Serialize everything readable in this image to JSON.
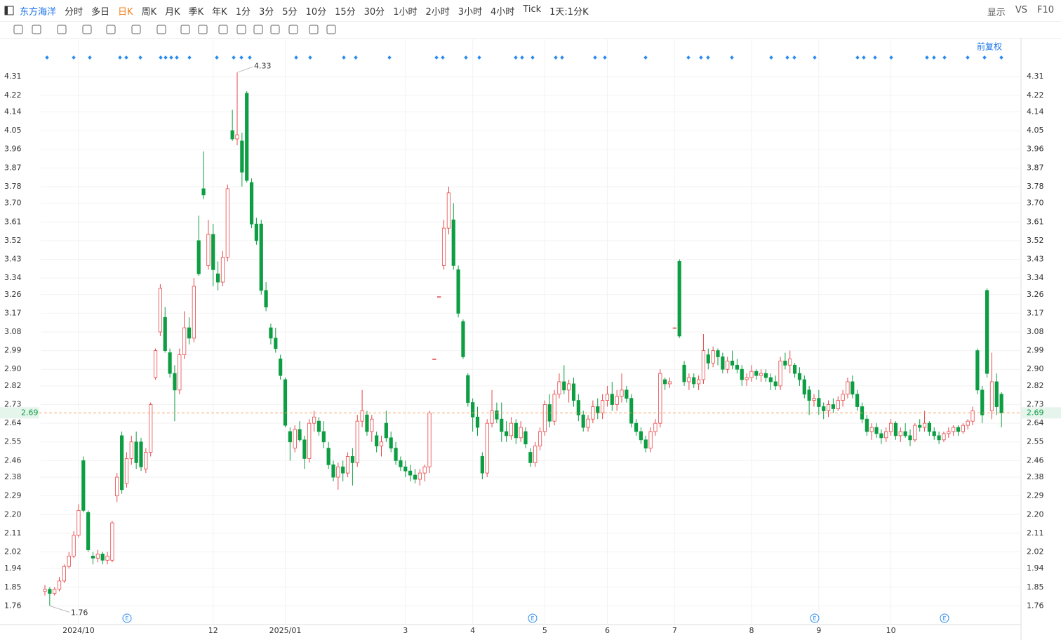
{
  "toolbar": {
    "stock": "东方海洋",
    "periods": [
      "分时",
      "多日",
      "日K",
      "周K",
      "月K",
      "季K",
      "年K",
      "1分",
      "3分",
      "5分",
      "10分",
      "15分",
      "30分",
      "1小时",
      "2小时",
      "3小时",
      "4小时",
      "Tick"
    ],
    "active_index": 2,
    "interval": "1天:1分K",
    "display": "显示",
    "vs": "VS",
    "f10": "F10",
    "adjust": "前复权",
    "event_label": "E"
  },
  "chart_data": {
    "type": "candlestick",
    "title": "东方海洋",
    "up_color": "#e8474a",
    "down_color": "#0d9e43",
    "ylim": [
      1.67,
      4.49
    ],
    "yticks": [
      1.76,
      1.85,
      1.94,
      2.02,
      2.11,
      {
        "value": 2.2,
        "label": "2.20"
      },
      2.29,
      2.38,
      2.46,
      2.55,
      2.64,
      2.73,
      2.82,
      {
        "value": 2.9,
        "label": "2.90"
      },
      2.99,
      3.08,
      3.17,
      3.26,
      3.34,
      3.43,
      3.52,
      3.61,
      {
        "value": 3.7,
        "label": "3.70"
      },
      3.78,
      3.87,
      3.96,
      4.05,
      4.14,
      4.22,
      4.31
    ],
    "grid": true,
    "last_price": 2.69,
    "last_price_color": "#f5a26a",
    "high_label": 4.33,
    "low_label": 1.76,
    "categories": [
      null,
      null,
      null,
      null,
      null,
      null,
      null,
      "2024/10",
      null,
      null,
      null,
      null,
      null,
      null,
      null,
      null,
      null,
      null,
      null,
      null,
      null,
      null,
      null,
      null,
      null,
      null,
      null,
      null,
      null,
      null,
      null,
      null,
      null,
      null,
      null,
      "12",
      null,
      null,
      null,
      null,
      null,
      null,
      null,
      null,
      null,
      null,
      null,
      null,
      null,
      null,
      "2025/01",
      null,
      null,
      null,
      null,
      null,
      null,
      null,
      null,
      null,
      null,
      null,
      null,
      null,
      null,
      null,
      null,
      null,
      null,
      null,
      null,
      null,
      null,
      null,
      null,
      "3",
      null,
      null,
      null,
      null,
      null,
      null,
      null,
      null,
      null,
      null,
      null,
      null,
      null,
      "4",
      null,
      null,
      null,
      null,
      null,
      null,
      null,
      null,
      null,
      null,
      null,
      null,
      null,
      null,
      "5",
      null,
      null,
      null,
      null,
      null,
      null,
      null,
      null,
      null,
      null,
      null,
      null,
      "6",
      null,
      null,
      null,
      null,
      null,
      null,
      null,
      null,
      null,
      null,
      null,
      null,
      null,
      "7",
      null,
      null,
      null,
      null,
      null,
      null,
      null,
      null,
      null,
      null,
      null,
      null,
      null,
      null,
      null,
      "8",
      null,
      null,
      null,
      null,
      null,
      null,
      null,
      null,
      null,
      null,
      null,
      null,
      null,
      "9",
      null,
      null,
      null,
      null,
      null,
      null,
      null,
      null,
      null,
      null,
      null,
      null,
      null,
      null,
      "10",
      null,
      null,
      null,
      null,
      null,
      null,
      null,
      null,
      null,
      null,
      null,
      null,
      null,
      null,
      null,
      null,
      null,
      null,
      null,
      null,
      null,
      null,
      null
    ],
    "ohlc": [
      [
        1.83,
        1.86,
        1.81,
        1.84
      ],
      [
        1.84,
        1.85,
        1.76,
        1.82
      ],
      [
        1.82,
        1.85,
        1.81,
        1.84
      ],
      [
        1.84,
        1.9,
        1.83,
        1.88
      ],
      [
        1.88,
        1.96,
        1.87,
        1.95
      ],
      [
        1.95,
        2.02,
        1.94,
        2.0
      ],
      [
        2.0,
        2.12,
        1.99,
        2.1
      ],
      [
        2.1,
        2.25,
        2.09,
        2.22
      ],
      [
        2.46,
        2.48,
        2.21,
        2.22
      ],
      [
        2.21,
        2.22,
        2.02,
        2.03
      ],
      [
        2.0,
        2.02,
        1.96,
        1.99
      ],
      [
        1.99,
        2.03,
        1.97,
        2.01
      ],
      [
        2.01,
        2.02,
        1.96,
        1.98
      ],
      [
        1.98,
        2.02,
        1.96,
        2.0
      ],
      [
        1.98,
        2.17,
        1.97,
        2.16
      ],
      [
        2.29,
        2.4,
        2.26,
        2.38
      ],
      [
        2.58,
        2.6,
        2.3,
        2.32
      ],
      [
        2.35,
        2.5,
        2.33,
        2.47
      ],
      [
        2.47,
        2.58,
        2.44,
        2.55
      ],
      [
        2.55,
        2.6,
        2.42,
        2.45
      ],
      [
        2.55,
        2.57,
        2.41,
        2.43
      ],
      [
        2.42,
        2.52,
        2.4,
        2.5
      ],
      [
        2.5,
        2.74,
        2.48,
        2.73
      ],
      [
        2.86,
        3.0,
        2.85,
        2.99
      ],
      [
        3.08,
        3.31,
        3.06,
        3.29
      ],
      [
        3.15,
        3.2,
        2.98,
        2.99
      ],
      [
        2.98,
        3.0,
        2.86,
        2.88
      ],
      [
        2.88,
        2.92,
        2.65,
        2.8
      ],
      [
        2.8,
        3.0,
        2.78,
        2.97
      ],
      [
        2.97,
        3.18,
        2.95,
        3.1
      ],
      [
        3.1,
        3.15,
        3.02,
        3.05
      ],
      [
        3.05,
        3.34,
        3.03,
        3.3
      ],
      [
        3.52,
        3.64,
        3.35,
        3.36
      ],
      [
        3.77,
        3.95,
        3.72,
        3.74
      ],
      [
        3.4,
        3.62,
        3.38,
        3.55
      ],
      [
        3.55,
        3.6,
        3.3,
        3.38
      ],
      [
        3.36,
        3.42,
        3.28,
        3.32
      ],
      [
        3.32,
        3.47,
        3.3,
        3.44
      ],
      [
        3.44,
        3.79,
        3.42,
        3.77
      ],
      [
        4.05,
        4.15,
        4.0,
        4.01
      ],
      [
        4.01,
        4.33,
        3.98,
        4.03
      ],
      [
        4.0,
        4.04,
        3.78,
        3.85
      ],
      [
        4.23,
        4.24,
        3.8,
        3.81
      ],
      [
        3.8,
        3.82,
        3.58,
        3.6
      ],
      [
        3.6,
        3.63,
        3.5,
        3.52
      ],
      [
        3.6,
        3.62,
        3.26,
        3.28
      ],
      [
        3.28,
        3.32,
        3.18,
        3.2
      ],
      [
        3.1,
        3.12,
        3.02,
        3.05
      ],
      [
        3.05,
        3.1,
        2.98,
        3.0
      ],
      [
        2.95,
        2.97,
        2.85,
        2.87
      ],
      [
        2.85,
        2.86,
        2.62,
        2.63
      ],
      [
        2.6,
        2.62,
        2.46,
        2.55
      ],
      [
        2.52,
        2.63,
        2.5,
        2.61
      ],
      [
        2.61,
        2.65,
        2.55,
        2.56
      ],
      [
        2.56,
        2.58,
        2.42,
        2.47
      ],
      [
        2.47,
        2.66,
        2.45,
        2.64
      ],
      [
        2.64,
        2.7,
        2.6,
        2.67
      ],
      [
        2.65,
        2.67,
        2.58,
        2.6
      ],
      [
        2.6,
        2.65,
        2.52,
        2.55
      ],
      [
        2.52,
        2.55,
        2.42,
        2.44
      ],
      [
        2.44,
        2.46,
        2.36,
        2.38
      ],
      [
        2.38,
        2.45,
        2.32,
        2.43
      ],
      [
        2.43,
        2.46,
        2.36,
        2.4
      ],
      [
        2.4,
        2.5,
        2.38,
        2.48
      ],
      [
        2.48,
        2.52,
        2.34,
        2.45
      ],
      [
        2.45,
        2.68,
        2.43,
        2.65
      ],
      [
        2.65,
        2.8,
        2.62,
        2.7
      ],
      [
        2.68,
        2.7,
        2.58,
        2.6
      ],
      [
        2.6,
        2.68,
        2.55,
        2.66
      ],
      [
        2.58,
        2.6,
        2.5,
        2.53
      ],
      [
        2.53,
        2.58,
        2.48,
        2.55
      ],
      [
        2.64,
        2.7,
        2.55,
        2.57
      ],
      [
        2.57,
        2.6,
        2.5,
        2.52
      ],
      [
        2.52,
        2.55,
        2.44,
        2.46
      ],
      [
        2.46,
        2.48,
        2.41,
        2.43
      ],
      [
        2.43,
        2.46,
        2.38,
        2.41
      ],
      [
        2.41,
        2.44,
        2.36,
        2.39
      ],
      [
        2.39,
        2.42,
        2.35,
        2.37
      ],
      [
        2.37,
        2.42,
        2.34,
        2.4
      ],
      [
        2.4,
        2.44,
        2.36,
        2.43
      ],
      [
        2.43,
        2.7,
        2.4,
        2.69
      ],
      [
        2.95,
        2.95,
        2.95,
        2.95
      ],
      [
        3.25,
        3.25,
        3.25,
        3.25
      ],
      [
        3.4,
        3.62,
        3.38,
        3.58
      ],
      [
        3.58,
        3.78,
        3.55,
        3.75
      ],
      [
        3.62,
        3.7,
        3.38,
        3.4
      ],
      [
        3.38,
        3.4,
        3.15,
        3.17
      ],
      [
        3.13,
        3.14,
        2.95,
        2.96
      ],
      [
        2.87,
        2.88,
        2.72,
        2.74
      ],
      [
        2.74,
        2.76,
        2.6,
        2.67
      ],
      [
        2.67,
        2.72,
        2.58,
        2.62
      ],
      [
        2.48,
        2.5,
        2.37,
        2.4
      ],
      [
        2.4,
        2.66,
        2.38,
        2.64
      ],
      [
        2.64,
        2.8,
        2.62,
        2.7
      ],
      [
        2.7,
        2.74,
        2.64,
        2.66
      ],
      [
        2.66,
        2.74,
        2.55,
        2.6
      ],
      [
        2.6,
        2.65,
        2.55,
        2.58
      ],
      [
        2.58,
        2.67,
        2.56,
        2.64
      ],
      [
        2.64,
        2.66,
        2.54,
        2.57
      ],
      [
        2.57,
        2.65,
        2.55,
        2.62
      ],
      [
        2.6,
        2.62,
        2.52,
        2.54
      ],
      [
        2.5,
        2.52,
        2.43,
        2.45
      ],
      [
        2.45,
        2.55,
        2.43,
        2.53
      ],
      [
        2.53,
        2.62,
        2.51,
        2.6
      ],
      [
        2.6,
        2.75,
        2.58,
        2.73
      ],
      [
        2.73,
        2.78,
        2.62,
        2.65
      ],
      [
        2.65,
        2.8,
        2.63,
        2.78
      ],
      [
        2.78,
        2.88,
        2.76,
        2.84
      ],
      [
        2.84,
        2.92,
        2.78,
        2.8
      ],
      [
        2.8,
        2.85,
        2.74,
        2.83
      ],
      [
        2.83,
        2.86,
        2.72,
        2.75
      ],
      [
        2.75,
        2.78,
        2.65,
        2.68
      ],
      [
        2.68,
        2.7,
        2.6,
        2.62
      ],
      [
        2.62,
        2.68,
        2.6,
        2.66
      ],
      [
        2.66,
        2.75,
        2.64,
        2.72
      ],
      [
        2.72,
        2.76,
        2.66,
        2.69
      ],
      [
        2.69,
        2.78,
        2.66,
        2.75
      ],
      [
        2.75,
        2.82,
        2.72,
        2.78
      ],
      [
        2.78,
        2.84,
        2.7,
        2.73
      ],
      [
        2.73,
        2.8,
        2.7,
        2.77
      ],
      [
        2.77,
        2.88,
        2.74,
        2.8
      ],
      [
        2.8,
        2.82,
        2.74,
        2.76
      ],
      [
        2.76,
        2.78,
        2.62,
        2.64
      ],
      [
        2.64,
        2.66,
        2.58,
        2.6
      ],
      [
        2.6,
        2.62,
        2.54,
        2.56
      ],
      [
        2.56,
        2.58,
        2.5,
        2.52
      ],
      [
        2.52,
        2.62,
        2.5,
        2.6
      ],
      [
        2.6,
        2.66,
        2.58,
        2.64
      ],
      [
        2.64,
        2.9,
        2.62,
        2.88
      ],
      [
        2.85,
        2.86,
        2.8,
        2.83
      ],
      [
        2.83,
        2.86,
        2.81,
        2.84
      ],
      [
        3.1,
        3.1,
        3.1,
        3.1
      ],
      [
        3.42,
        3.43,
        3.05,
        3.06
      ],
      [
        2.92,
        2.94,
        2.82,
        2.84
      ],
      [
        2.84,
        2.88,
        2.8,
        2.86
      ],
      [
        2.86,
        2.88,
        2.81,
        2.83
      ],
      [
        2.83,
        2.87,
        2.8,
        2.85
      ],
      [
        2.85,
        3.07,
        2.83,
        2.99
      ],
      [
        2.97,
        3.0,
        2.9,
        2.93
      ],
      [
        2.93,
        3.01,
        2.91,
        2.99
      ],
      [
        2.99,
        3.0,
        2.92,
        2.96
      ],
      [
        2.96,
        2.98,
        2.88,
        2.9
      ],
      [
        2.9,
        2.96,
        2.88,
        2.94
      ],
      [
        2.94,
        2.99,
        2.9,
        2.92
      ],
      [
        2.92,
        2.95,
        2.88,
        2.9
      ],
      [
        2.9,
        2.92,
        2.82,
        2.85
      ],
      [
        2.85,
        2.88,
        2.82,
        2.86
      ],
      [
        2.86,
        2.92,
        2.84,
        2.89
      ],
      [
        2.89,
        2.9,
        2.85,
        2.87
      ],
      [
        2.87,
        2.9,
        2.84,
        2.88
      ],
      [
        2.88,
        2.9,
        2.84,
        2.86
      ],
      [
        2.86,
        2.88,
        2.8,
        2.84
      ],
      [
        2.84,
        2.87,
        2.8,
        2.82
      ],
      [
        2.82,
        2.96,
        2.8,
        2.94
      ],
      [
        2.94,
        2.98,
        2.9,
        2.92
      ],
      [
        2.92,
        2.99,
        2.88,
        2.95
      ],
      [
        2.92,
        2.93,
        2.86,
        2.88
      ],
      [
        2.88,
        2.91,
        2.82,
        2.85
      ],
      [
        2.85,
        2.87,
        2.76,
        2.78
      ],
      [
        2.8,
        2.82,
        2.68,
        2.75
      ],
      [
        2.75,
        2.78,
        2.72,
        2.76
      ],
      [
        2.76,
        2.8,
        2.68,
        2.72
      ],
      [
        2.72,
        2.74,
        2.66,
        2.7
      ],
      [
        2.7,
        2.75,
        2.67,
        2.73
      ],
      [
        2.73,
        2.76,
        2.69,
        2.71
      ],
      [
        2.71,
        2.77,
        2.7,
        2.75
      ],
      [
        2.75,
        2.8,
        2.72,
        2.78
      ],
      [
        2.78,
        2.86,
        2.76,
        2.84
      ],
      [
        2.84,
        2.87,
        2.76,
        2.78
      ],
      [
        2.78,
        2.8,
        2.7,
        2.72
      ],
      [
        2.72,
        2.74,
        2.64,
        2.66
      ],
      [
        2.66,
        2.68,
        2.58,
        2.6
      ],
      [
        2.6,
        2.64,
        2.56,
        2.62
      ],
      [
        2.62,
        2.64,
        2.57,
        2.59
      ],
      [
        2.59,
        2.61,
        2.54,
        2.57
      ],
      [
        2.57,
        2.62,
        2.55,
        2.6
      ],
      [
        2.6,
        2.66,
        2.58,
        2.64
      ],
      [
        2.64,
        2.65,
        2.56,
        2.58
      ],
      [
        2.58,
        2.62,
        2.55,
        2.6
      ],
      [
        2.6,
        2.64,
        2.57,
        2.58
      ],
      [
        2.58,
        2.61,
        2.53,
        2.56
      ],
      [
        2.56,
        2.64,
        2.55,
        2.63
      ],
      [
        2.63,
        2.66,
        2.6,
        2.62
      ],
      [
        2.62,
        2.7,
        2.6,
        2.64
      ],
      [
        2.64,
        2.65,
        2.58,
        2.6
      ],
      [
        2.6,
        2.62,
        2.56,
        2.58
      ],
      [
        2.58,
        2.6,
        2.54,
        2.56
      ],
      [
        2.56,
        2.6,
        2.55,
        2.59
      ],
      [
        2.59,
        2.62,
        2.57,
        2.6
      ],
      [
        2.6,
        2.63,
        2.58,
        2.62
      ],
      [
        2.62,
        2.63,
        2.58,
        2.6
      ],
      [
        2.6,
        2.64,
        2.59,
        2.63
      ],
      [
        2.63,
        2.66,
        2.61,
        2.65
      ],
      [
        2.65,
        2.72,
        2.63,
        2.7
      ],
      [
        2.99,
        3.0,
        2.78,
        2.8
      ],
      [
        2.8,
        2.82,
        2.64,
        2.68
      ],
      [
        3.28,
        3.29,
        2.86,
        2.88
      ],
      [
        2.7,
        2.98,
        2.66,
        2.84
      ],
      [
        2.84,
        2.88,
        2.68,
        2.72
      ],
      [
        2.78,
        2.79,
        2.62,
        2.69
      ]
    ]
  }
}
